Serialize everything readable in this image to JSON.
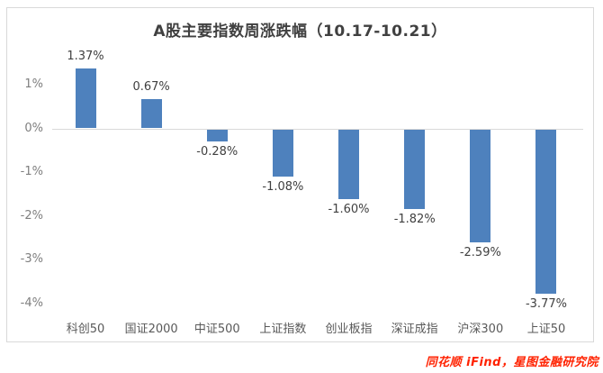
{
  "chart_data": {
    "type": "bar",
    "title": "A股主要指数周涨跌幅（10.17-10.21）",
    "categories": [
      "科创50",
      "国证2000",
      "中证500",
      "上证指数",
      "创业板指",
      "深证成指",
      "沪深300",
      "上证50"
    ],
    "values": [
      1.37,
      0.67,
      -0.28,
      -1.08,
      -1.6,
      -1.82,
      -2.59,
      -3.77
    ],
    "data_labels": [
      "1.37%",
      "0.67%",
      "-0.28%",
      "-1.08%",
      "-1.60%",
      "-1.82%",
      "-2.59%",
      "-3.77%"
    ],
    "y_ticks": [
      "1%",
      "0%",
      "-1%",
      "-2%",
      "-3%",
      "-4%"
    ],
    "y_tick_values": [
      1,
      0,
      -1,
      -2,
      -3,
      -4
    ],
    "ylim": [
      -4.3,
      1.9
    ],
    "xlabel": "",
    "ylabel": "",
    "grid": false,
    "legend_position": "none",
    "bar_color": "#4e81bd",
    "axis_line_color": "#d9d9d9"
  },
  "footer": {
    "source_text": "同花顺 iFind，星图金融研究院",
    "color": "#ff2200"
  }
}
